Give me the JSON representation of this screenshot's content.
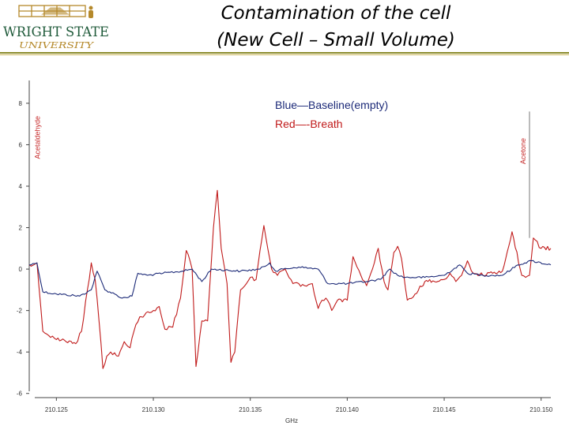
{
  "header": {
    "logo": {
      "line1": "WRIGHT STATE",
      "line2": "UNIVERSITY",
      "name": "wright-state-logo",
      "colors": {
        "green": "#1f5a3a",
        "gold": "#b5892b"
      }
    },
    "title_line1": "Contamination of the cell",
    "title_line2": "(New Cell – Small Volume)"
  },
  "chart_data": {
    "type": "line",
    "xlabel": "GHz",
    "ylabel": "",
    "xlim": [
      210.1236,
      210.1505
    ],
    "ylim": [
      -6.2,
      9.1
    ],
    "x_ticks": [
      "210.125",
      "210.130",
      "210.135",
      "210.140",
      "210.145",
      "210.150"
    ],
    "y_ticks": [
      "8",
      "6",
      "4",
      "2",
      "0",
      "-2",
      "-4",
      "-6"
    ],
    "legend": [
      {
        "text": "Blue—Baseline(empty)",
        "color": "#1c2a78"
      },
      {
        "text": "Red—-Breath",
        "color": "#c01a1a"
      }
    ],
    "annotations": [
      {
        "text": "Acetaldehyde",
        "x": 210.1242,
        "ymin": 4.8,
        "ymax": 7.9
      },
      {
        "text": "Acetone",
        "x": 210.1494,
        "ymin": 1.5,
        "ymax": 7.6
      }
    ],
    "series": [
      {
        "color": "#1c2a78",
        "x": [
          210.1236,
          210.124,
          210.1243,
          210.125,
          210.1262,
          210.1268,
          210.1271,
          210.1275,
          210.128,
          210.1284,
          210.1289,
          210.1292,
          210.1297,
          210.1305,
          210.1315,
          210.132,
          210.1325,
          210.133,
          210.1345,
          210.1355,
          210.136,
          210.1363,
          210.1367,
          210.1375,
          210.1385,
          210.139,
          210.1393,
          210.14,
          210.141,
          210.1417,
          210.1422,
          210.1426,
          210.143,
          210.144,
          210.145,
          210.1458,
          210.1462,
          210.147,
          210.148,
          210.1488,
          210.1495,
          210.1505
        ],
        "y": [
          0.2,
          0.3,
          -1.1,
          -1.2,
          -1.3,
          -1.0,
          -0.1,
          -1.0,
          -1.2,
          -1.4,
          -1.3,
          -0.2,
          -0.3,
          -0.2,
          -0.1,
          0.0,
          -0.6,
          0.0,
          -0.1,
          0.0,
          0.3,
          -0.1,
          0.0,
          0.1,
          0.0,
          -0.7,
          -0.7,
          -0.7,
          -0.6,
          -0.5,
          0.0,
          -0.3,
          -0.4,
          -0.4,
          -0.3,
          0.2,
          -0.2,
          -0.3,
          -0.3,
          0.2,
          0.4,
          0.2
        ]
      },
      {
        "color": "#c01a1a",
        "x": [
          210.1236,
          210.124,
          210.1243,
          210.1246,
          210.125,
          210.1255,
          210.126,
          210.1263,
          210.1266,
          210.1268,
          210.127,
          210.1272,
          210.1274,
          210.1276,
          210.1278,
          210.1282,
          210.1285,
          210.1288,
          210.129,
          210.1293,
          210.1298,
          210.13,
          210.1303,
          210.1306,
          210.131,
          210.1314,
          210.1317,
          210.132,
          210.1322,
          210.1325,
          210.1328,
          210.1331,
          210.1333,
          210.1335,
          210.1338,
          210.134,
          210.1342,
          210.1345,
          210.1348,
          210.135,
          210.1353,
          210.1355,
          210.1357,
          210.1359,
          210.1361,
          210.1364,
          210.1368,
          210.1372,
          210.1375,
          210.1378,
          210.1382,
          210.1385,
          210.1387,
          210.1389,
          210.1392,
          210.1395,
          210.14,
          210.1403,
          210.1407,
          210.141,
          210.1413,
          210.1416,
          210.1419,
          210.1421,
          210.1424,
          210.1426,
          210.1428,
          210.1431,
          210.1435,
          210.144,
          210.1445,
          210.145,
          210.1453,
          210.1456,
          210.1459,
          210.1462,
          210.1465,
          210.147,
          210.1475,
          210.148,
          210.1485,
          210.149,
          210.1492,
          210.1494,
          210.1496,
          210.15,
          210.1505
        ],
        "y": [
          0.2,
          0.3,
          -3.0,
          -3.2,
          -3.4,
          -3.5,
          -3.6,
          -3.0,
          -1.0,
          0.3,
          -0.5,
          -2.5,
          -4.8,
          -4.2,
          -4.0,
          -4.2,
          -3.5,
          -3.8,
          -3.0,
          -2.3,
          -2.1,
          -2.0,
          -1.8,
          -2.9,
          -2.8,
          -1.4,
          0.9,
          0.0,
          -4.7,
          -2.5,
          -2.5,
          2.0,
          3.8,
          1.0,
          -0.7,
          -4.5,
          -4.0,
          -1.0,
          -0.7,
          -0.4,
          -0.5,
          0.9,
          2.1,
          1.0,
          0.0,
          -0.3,
          0.0,
          -0.7,
          -0.7,
          -0.8,
          -0.7,
          -1.9,
          -1.5,
          -1.4,
          -2.0,
          -1.5,
          -1.5,
          0.6,
          -0.3,
          -0.8,
          0.0,
          1.0,
          -0.6,
          -1.0,
          0.8,
          1.1,
          0.5,
          -1.5,
          -1.2,
          -0.6,
          -0.6,
          -0.5,
          -0.2,
          -0.6,
          -0.3,
          0.4,
          -0.2,
          -0.3,
          -0.2,
          -0.1,
          1.8,
          -0.3,
          -0.4,
          -0.3,
          1.5,
          1.0,
          1.0
        ]
      }
    ]
  }
}
